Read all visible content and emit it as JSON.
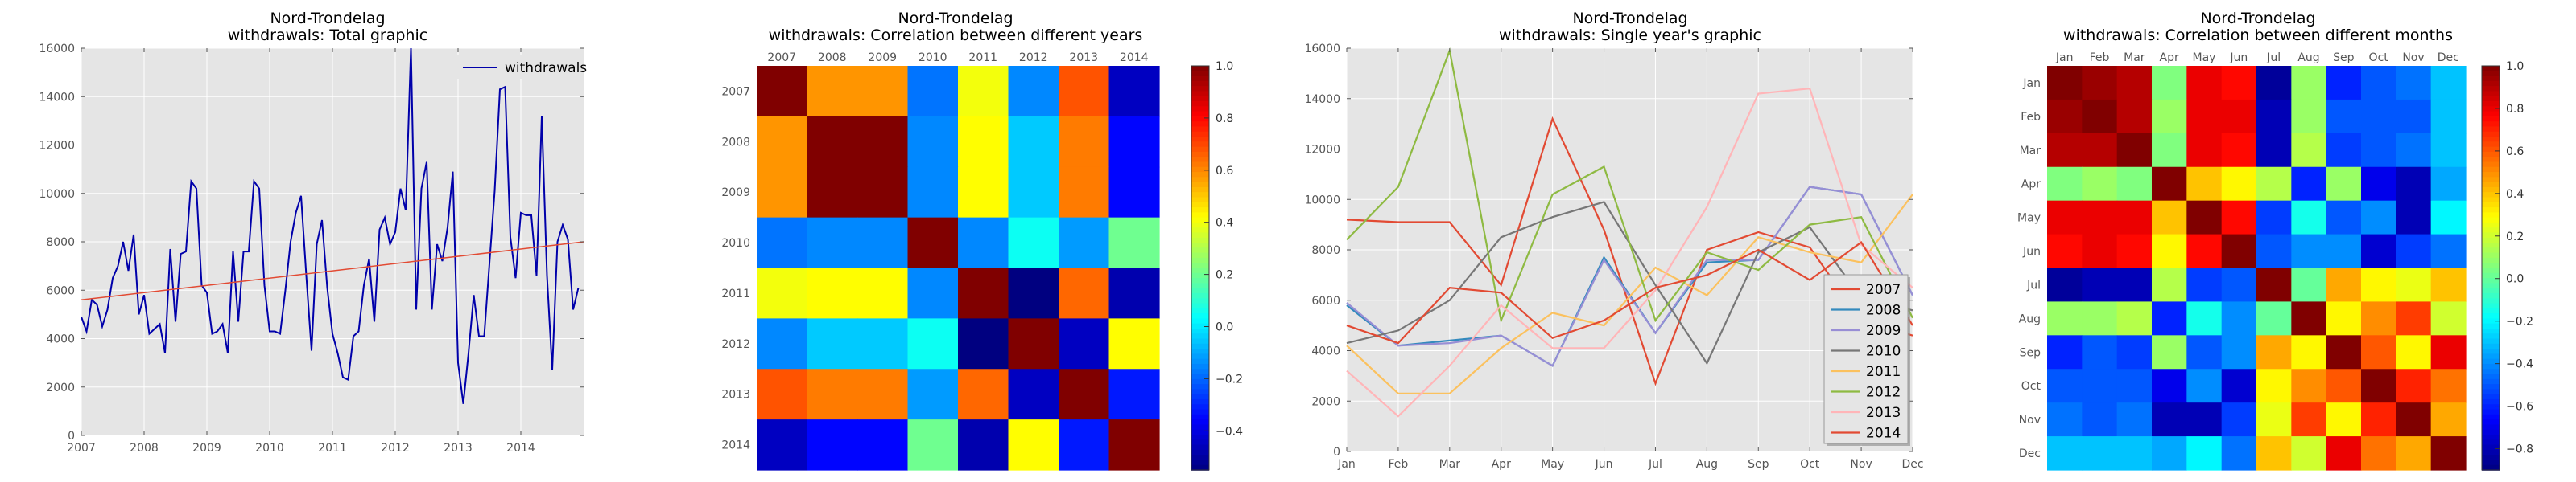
{
  "figure": {
    "panels": [
      {
        "title_line1": "Nord-Trondelag",
        "title_line2": "withdrawals: Total graphic"
      },
      {
        "title_line1": "Nord-Trondelag",
        "title_line2": "withdrawals: Correlation between different years"
      },
      {
        "title_line1": "Nord-Trondelag",
        "title_line2": "withdrawals: Single year's graphic"
      },
      {
        "title_line1": "Nord-Trondelag",
        "title_line2": "withdrawals: Correlation between different months"
      }
    ]
  },
  "colors": {
    "axes_bg": "#e5e5e5",
    "timeseries_line": "#0000aa",
    "trend_line": "#e24a33",
    "years": {
      "2007": "#e24a33",
      "2008": "#348abd",
      "2009": "#988ed5",
      "2010": "#777777",
      "2011": "#fbc15e",
      "2012": "#8eba42",
      "2013": "#ffb5b8",
      "2014": "#e24a33"
    }
  },
  "chart_data": [
    {
      "type": "line",
      "title": "Nord-Trondelag\nwithdrawals: Total graphic",
      "xlabel": "",
      "ylabel": "",
      "x_ticks": [
        "2007",
        "2008",
        "2009",
        "2010",
        "2011",
        "2012",
        "2013",
        "2014"
      ],
      "xlim": [
        2007,
        2015
      ],
      "ylim": [
        0,
        16000
      ],
      "y_ticks": [
        0,
        2000,
        4000,
        6000,
        8000,
        10000,
        12000,
        14000,
        16000
      ],
      "legend": {
        "entries": [
          "withdrawals"
        ],
        "placement": "top-right"
      },
      "grid": true,
      "series": [
        {
          "name": "withdrawals",
          "x_start": 2007,
          "step": "monthly",
          "values": [
            4900,
            4300,
            5600,
            5400,
            4500,
            5200,
            6500,
            7000,
            8000,
            6800,
            8300,
            5000,
            5800,
            4200,
            4400,
            4600,
            3400,
            7700,
            4700,
            7500,
            7600,
            10500,
            10200,
            6200,
            5900,
            4200,
            4300,
            4600,
            3400,
            7600,
            4700,
            7600,
            7600,
            10500,
            10200,
            6200,
            4300,
            4300,
            4200,
            6000,
            8000,
            9200,
            9900,
            6600,
            3500,
            7900,
            8900,
            6100,
            4200,
            3400,
            2400,
            2300,
            4100,
            4300,
            6200,
            7300,
            4700,
            8500,
            9000,
            7900,
            8400,
            10200,
            9300,
            16000,
            5200,
            10200,
            11300,
            5200,
            7900,
            7200,
            8600,
            10900,
            3000,
            1300,
            3400,
            5800,
            4100,
            4100,
            7100,
            10100,
            14300,
            14400,
            8200,
            6500,
            9200,
            9100,
            9100,
            6600,
            13200,
            6600,
            2700,
            8000,
            8700,
            8100,
            5200,
            6100
          ]
        }
      ],
      "trendline": {
        "x": [
          2007,
          2015
        ],
        "y": [
          5600,
          8000
        ]
      }
    },
    {
      "type": "heatmap",
      "title": "Nord-Trondelag\nwithdrawals: Correlation between different years",
      "x_labels": [
        "2007",
        "2008",
        "2009",
        "2010",
        "2011",
        "2012",
        "2013",
        "2014"
      ],
      "y_labels": [
        "2007",
        "2008",
        "2009",
        "2010",
        "2011",
        "2012",
        "2013",
        "2014"
      ],
      "colorbar": {
        "range": [
          -0.55,
          1.0
        ],
        "ticks": [
          1.0,
          0.8,
          0.6,
          0.4,
          0.2,
          0.0,
          -0.2,
          -0.4
        ]
      },
      "values": [
        [
          1.0,
          0.58,
          0.58,
          -0.18,
          0.4,
          -0.15,
          0.68,
          -0.45
        ],
        [
          0.58,
          1.0,
          1.0,
          -0.15,
          0.42,
          -0.05,
          0.62,
          -0.35
        ],
        [
          0.58,
          1.0,
          1.0,
          -0.15,
          0.42,
          -0.05,
          0.62,
          -0.35
        ],
        [
          -0.18,
          -0.15,
          -0.15,
          1.0,
          -0.15,
          0.05,
          -0.12,
          0.2
        ],
        [
          0.4,
          0.42,
          0.42,
          -0.15,
          1.0,
          -0.55,
          0.65,
          -0.48
        ],
        [
          -0.15,
          -0.05,
          -0.05,
          0.05,
          -0.55,
          1.0,
          -0.45,
          0.42
        ],
        [
          0.68,
          0.62,
          0.62,
          -0.12,
          0.65,
          -0.45,
          1.0,
          -0.32
        ],
        [
          -0.45,
          -0.35,
          -0.35,
          0.2,
          -0.48,
          0.42,
          -0.32,
          1.0
        ]
      ]
    },
    {
      "type": "line",
      "title": "Nord-Trondelag\nwithdrawals: Single year's graphic",
      "xlabel": "",
      "ylabel": "",
      "categories": [
        "Jan",
        "Feb",
        "Mar",
        "Apr",
        "May",
        "Jun",
        "Jul",
        "Aug",
        "Sep",
        "Oct",
        "Nov",
        "Dec"
      ],
      "ylim": [
        0,
        16000
      ],
      "y_ticks": [
        0,
        2000,
        4000,
        6000,
        8000,
        10000,
        12000,
        14000,
        16000
      ],
      "legend": {
        "entries": [
          "2007",
          "2008",
          "2009",
          "2010",
          "2011",
          "2012",
          "2013",
          "2014"
        ],
        "placement": "bottom-right"
      },
      "grid": true,
      "series": [
        {
          "name": "2007",
          "values": [
            9200,
            9100,
            9100,
            6600,
            13200,
            8800,
            2700,
            8000,
            8700,
            8100,
            5200,
            4600
          ]
        },
        {
          "name": "2008",
          "values": [
            5800,
            4200,
            4400,
            4600,
            3400,
            7700,
            4700,
            7500,
            7600,
            10500,
            10200,
            6200
          ]
        },
        {
          "name": "2009",
          "values": [
            5900,
            4200,
            4300,
            4600,
            3400,
            7600,
            4700,
            7600,
            7600,
            10500,
            10200,
            6200
          ]
        },
        {
          "name": "2010",
          "values": [
            4300,
            4800,
            6000,
            8500,
            9300,
            9900,
            6600,
            3500,
            7900,
            8900,
            6100,
            5600
          ]
        },
        {
          "name": "2011",
          "values": [
            4200,
            2300,
            2300,
            4100,
            5500,
            5000,
            7300,
            6200,
            8500,
            7900,
            7500,
            10200
          ]
        },
        {
          "name": "2012",
          "values": [
            8400,
            10500,
            15900,
            5200,
            10200,
            11300,
            5200,
            7900,
            7200,
            9000,
            9300,
            5300
          ]
        },
        {
          "name": "2013",
          "values": [
            3200,
            1400,
            3400,
            5800,
            4100,
            4100,
            6400,
            9700,
            14200,
            14400,
            8200,
            6500
          ]
        },
        {
          "name": "2014",
          "values": [
            5000,
            4300,
            6500,
            6300,
            4500,
            5200,
            6500,
            7000,
            8000,
            6800,
            8300,
            5000
          ]
        }
      ]
    },
    {
      "type": "heatmap",
      "title": "Nord-Trondelag\nwithdrawals: Correlation between different months",
      "x_labels": [
        "Jan",
        "Feb",
        "Mar",
        "Apr",
        "May",
        "Jun",
        "Jul",
        "Aug",
        "Sep",
        "Oct",
        "Nov",
        "Dec"
      ],
      "y_labels": [
        "Jan",
        "Feb",
        "Mar",
        "Apr",
        "May",
        "Jun",
        "Jul",
        "Aug",
        "Sep",
        "Oct",
        "Nov",
        "Dec"
      ],
      "colorbar": {
        "range": [
          -0.9,
          1.0
        ],
        "ticks": [
          1.0,
          0.8,
          0.6,
          0.4,
          0.2,
          0.0,
          -0.2,
          -0.4,
          -0.6,
          -0.8
        ]
      },
      "values": [
        [
          1.0,
          0.95,
          0.9,
          0.05,
          0.8,
          0.75,
          -0.85,
          0.1,
          -0.6,
          -0.5,
          -0.45,
          -0.3
        ],
        [
          0.95,
          1.0,
          0.9,
          0.1,
          0.8,
          0.8,
          -0.8,
          0.1,
          -0.5,
          -0.5,
          -0.5,
          -0.3
        ],
        [
          0.9,
          0.9,
          1.0,
          0.05,
          0.8,
          0.75,
          -0.8,
          0.15,
          -0.55,
          -0.5,
          -0.45,
          -0.3
        ],
        [
          0.05,
          0.1,
          0.05,
          1.0,
          0.4,
          0.3,
          0.15,
          -0.6,
          0.1,
          -0.7,
          -0.8,
          -0.35
        ],
        [
          0.8,
          0.8,
          0.8,
          0.4,
          1.0,
          0.75,
          -0.55,
          -0.15,
          -0.5,
          -0.4,
          -0.8,
          -0.2
        ],
        [
          0.75,
          0.8,
          0.75,
          0.3,
          0.75,
          1.0,
          -0.5,
          -0.4,
          -0.4,
          -0.75,
          -0.55,
          -0.45
        ],
        [
          -0.85,
          -0.8,
          -0.8,
          0.15,
          -0.55,
          -0.5,
          1.0,
          0.0,
          0.45,
          0.3,
          0.25,
          0.4
        ],
        [
          0.1,
          0.1,
          0.15,
          -0.6,
          -0.15,
          -0.4,
          0.0,
          1.0,
          0.3,
          0.5,
          0.65,
          0.2
        ],
        [
          -0.6,
          -0.5,
          -0.55,
          0.1,
          -0.5,
          -0.4,
          0.45,
          0.3,
          1.0,
          0.6,
          0.3,
          0.8
        ],
        [
          -0.5,
          -0.5,
          -0.5,
          -0.7,
          -0.4,
          -0.75,
          0.3,
          0.5,
          0.6,
          1.0,
          0.7,
          0.55
        ],
        [
          -0.45,
          -0.5,
          -0.45,
          -0.8,
          -0.8,
          -0.55,
          0.25,
          0.65,
          0.3,
          0.7,
          1.0,
          0.45
        ],
        [
          -0.3,
          -0.3,
          -0.3,
          -0.35,
          -0.2,
          -0.45,
          0.4,
          0.2,
          0.8,
          0.55,
          0.45,
          1.0
        ]
      ]
    }
  ]
}
